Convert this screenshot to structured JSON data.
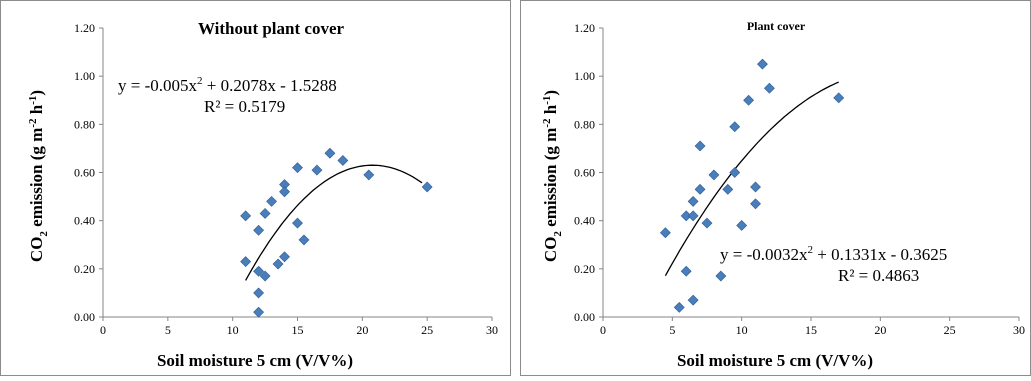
{
  "chart_data": [
    {
      "type": "scatter",
      "title": "Without plant cover",
      "xlabel": "Soil moisture 5 cm (V/V%)",
      "ylabel_pre": "CO",
      "ylabel_sub": "2",
      "ylabel_mid": " emission  (g m",
      "ylabel_sup": "-2",
      "ylabel_mid2": " h",
      "ylabel_sup2": "-1",
      "ylabel_post": ")",
      "xlim": [
        0,
        30
      ],
      "ylim": [
        0,
        1.2
      ],
      "x_ticks": [
        0,
        5,
        10,
        15,
        20,
        25,
        30
      ],
      "x_tick_labels": [
        "0",
        "5",
        "10",
        "15",
        "20",
        "25",
        "30"
      ],
      "y_ticks": [
        0,
        0.2,
        0.4,
        0.6,
        0.8,
        1.0,
        1.2
      ],
      "y_tick_labels": [
        "0.00",
        "0.20",
        "0.40",
        "0.60",
        "0.80",
        "1.00",
        "1.20"
      ],
      "grid": false,
      "trendline": {
        "type": "polynomial",
        "a": -0.005,
        "b": 0.2078,
        "c": -1.5288,
        "x_range": [
          11,
          24.6
        ]
      },
      "equation_pre": "y = -0.005x",
      "equation_sup": "2",
      "equation_post": " + 0.2078x - 1.5288",
      "r2": "R² = 0.5179",
      "series": [
        {
          "points": [
            [
              11,
              0.42
            ],
            [
              11,
              0.23
            ],
            [
              12,
              0.36
            ],
            [
              12,
              0.19
            ],
            [
              12,
              0.1
            ],
            [
              12,
              0.02
            ],
            [
              12.5,
              0.43
            ],
            [
              12.5,
              0.17
            ],
            [
              13,
              0.48
            ],
            [
              13.5,
              0.22
            ],
            [
              14,
              0.55
            ],
            [
              14,
              0.52
            ],
            [
              14,
              0.25
            ],
            [
              15,
              0.62
            ],
            [
              15,
              0.39
            ],
            [
              15.5,
              0.32
            ],
            [
              16.5,
              0.61
            ],
            [
              17.5,
              0.68
            ],
            [
              18.5,
              0.65
            ],
            [
              20.5,
              0.59
            ],
            [
              25,
              0.54
            ]
          ]
        }
      ]
    },
    {
      "type": "scatter",
      "title": "Plant cover",
      "xlabel": "Soil moisture 5 cm (V/V%)",
      "ylabel_pre": "CO",
      "ylabel_sub": "2",
      "ylabel_mid": " emission  (g m",
      "ylabel_sup": "-2",
      "ylabel_mid2": " h",
      "ylabel_sup2": "-1",
      "ylabel_post": ")",
      "xlim": [
        0,
        30
      ],
      "ylim": [
        0,
        1.2
      ],
      "x_ticks": [
        0,
        5,
        10,
        15,
        20,
        25,
        30
      ],
      "x_tick_labels": [
        "0",
        "5",
        "10",
        "15",
        "20",
        "25",
        "30"
      ],
      "y_ticks": [
        0,
        0.2,
        0.4,
        0.6,
        0.8,
        1.0,
        1.2
      ],
      "y_tick_labels": [
        "0.00",
        "0.20",
        "0.40",
        "0.60",
        "0.80",
        "1.00",
        "1.20"
      ],
      "grid": false,
      "trendline": {
        "type": "polynomial",
        "a": -0.0032,
        "b": 0.1331,
        "c": -0.3625,
        "x_range": [
          4.5,
          17
        ]
      },
      "equation_pre": "y = -0.0032x",
      "equation_sup": "2",
      "equation_post": " + 0.1331x - 0.3625",
      "r2": "R² = 0.4863",
      "series": [
        {
          "points": [
            [
              4.5,
              0.35
            ],
            [
              5.5,
              0.04
            ],
            [
              6,
              0.42
            ],
            [
              6,
              0.19
            ],
            [
              6.5,
              0.48
            ],
            [
              6.5,
              0.42
            ],
            [
              6.5,
              0.07
            ],
            [
              7,
              0.71
            ],
            [
              7,
              0.53
            ],
            [
              7.5,
              0.39
            ],
            [
              8,
              0.59
            ],
            [
              8.5,
              0.17
            ],
            [
              9,
              0.53
            ],
            [
              9.5,
              0.79
            ],
            [
              9.5,
              0.6
            ],
            [
              10,
              0.38
            ],
            [
              10.5,
              0.9
            ],
            [
              11,
              0.54
            ],
            [
              11,
              0.47
            ],
            [
              11.5,
              1.05
            ],
            [
              12,
              0.95
            ],
            [
              17,
              0.91
            ]
          ]
        }
      ]
    }
  ]
}
